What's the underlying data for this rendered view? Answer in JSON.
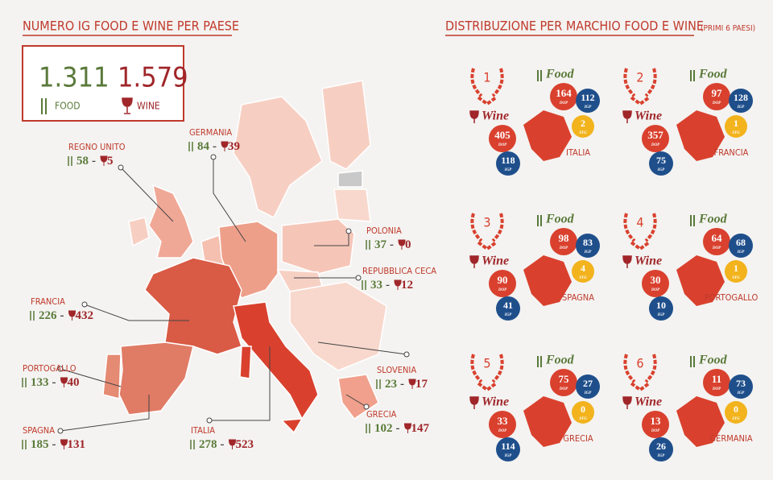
{
  "left": {
    "title": "NUMERO IG FOOD E WINE PER PAESE",
    "totals": {
      "food": {
        "value": "1.311",
        "label": "FOOD"
      },
      "wine": {
        "value": "1.579",
        "label": "WINE"
      }
    },
    "separator": "-",
    "countries": [
      {
        "name": "REGNO UNITO",
        "food": "58",
        "wine": "5"
      },
      {
        "name": "GERMANIA",
        "food": "84",
        "wine": "39"
      },
      {
        "name": "POLONIA",
        "food": "37",
        "wine": "0"
      },
      {
        "name": "REPUBBLICA CECA",
        "food": "33",
        "wine": "12"
      },
      {
        "name": "FRANCIA",
        "food": "226",
        "wine": "432"
      },
      {
        "name": "PORTOGALLO",
        "food": "133",
        "wine": "40"
      },
      {
        "name": "SLOVENIA",
        "food": "23",
        "wine": "17"
      },
      {
        "name": "SPAGNA",
        "food": "185",
        "wine": "131"
      },
      {
        "name": "ITALIA",
        "food": "278",
        "wine": "523"
      },
      {
        "name": "GRECIA",
        "food": "102",
        "wine": "147"
      }
    ]
  },
  "right": {
    "title": "DISTRIBUZIONE PER MARCHIO FOOD E WINE",
    "subtitle": "(PRIMI 6 PAESI)",
    "food_label": "Food",
    "wine_label": "Wine",
    "badge_labels": {
      "dop": "DOP",
      "igp": "IGP",
      "stg": "STG"
    },
    "ranking": [
      {
        "rank": "1",
        "country": "ITALIA",
        "food": {
          "dop": "164",
          "igp": "112",
          "stg": "2"
        },
        "wine": {
          "dop": "405",
          "igp": "118"
        }
      },
      {
        "rank": "2",
        "country": "FRANCIA",
        "food": {
          "dop": "97",
          "igp": "128",
          "stg": "1"
        },
        "wine": {
          "dop": "357",
          "igp": "75"
        }
      },
      {
        "rank": "3",
        "country": "SPAGNA",
        "food": {
          "dop": "98",
          "igp": "83",
          "stg": "4"
        },
        "wine": {
          "dop": "90",
          "igp": "41"
        }
      },
      {
        "rank": "4",
        "country": "PORTOGALLO",
        "food": {
          "dop": "64",
          "igp": "68",
          "stg": "1"
        },
        "wine": {
          "dop": "30",
          "igp": "10"
        }
      },
      {
        "rank": "5",
        "country": "GRECIA",
        "food": {
          "dop": "75",
          "igp": "27",
          "stg": "0"
        },
        "wine": {
          "dop": "33",
          "igp": "114"
        }
      },
      {
        "rank": "6",
        "country": "GERMANIA",
        "food": {
          "dop": "11",
          "igp": "73",
          "stg": "0"
        },
        "wine": {
          "dop": "13",
          "igp": "26"
        }
      }
    ]
  }
}
